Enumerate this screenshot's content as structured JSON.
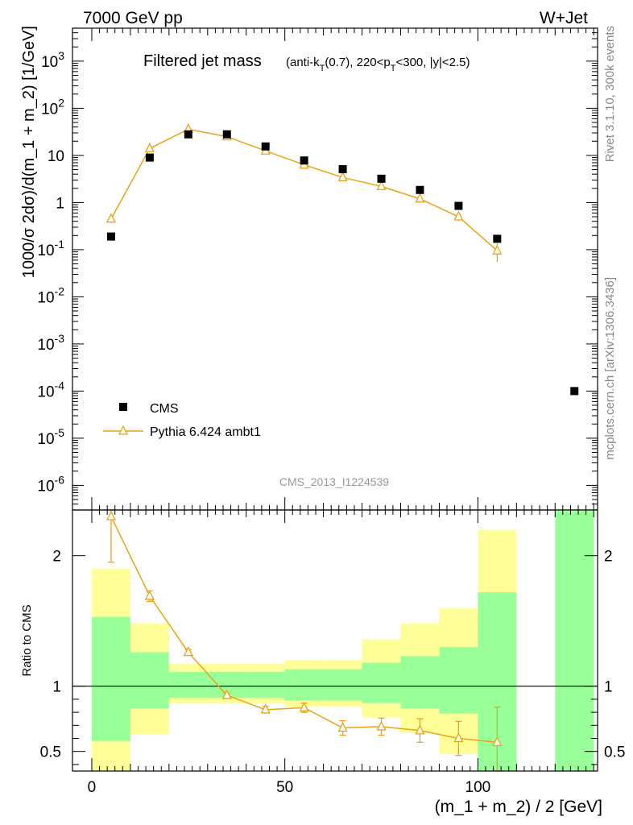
{
  "header": {
    "energy_label": "7000 GeV pp",
    "process_label": "W+Jet"
  },
  "side_labels": {
    "rivet": "Rivet 3.1.10,  300k events",
    "source": "mcplots.cern.ch [arXiv:1306.3436]"
  },
  "chart_data": [
    {
      "type": "scatter",
      "panel": "main",
      "title": "Filtered jet mass",
      "subtitle": "(anti-k_T(0.7), 220<p_T<300, |y|<2.5)",
      "watermark": "CMS_2013_I1224539",
      "ylabel": "1000/σ 2dσ)/d(m_1 + m_2) [1/GeV]",
      "yscale": "log",
      "ylim": [
        3e-07,
        5000
      ],
      "xlim": [
        -5,
        131
      ],
      "y_tick_labels": [
        "10^-6",
        "10^-5",
        "10^-4",
        "10^-3",
        "10^-2",
        "10^-1",
        "1",
        "10",
        "10^2",
        "10^3"
      ],
      "legend_position": "bottom-left",
      "series": [
        {
          "name": "CMS",
          "color": "#000000",
          "marker": "square",
          "x": [
            5,
            15,
            25,
            35,
            45,
            55,
            65,
            75,
            85,
            95,
            105,
            125
          ],
          "y": [
            0.19,
            9,
            28,
            28,
            15.5,
            7.8,
            5.1,
            3.2,
            1.85,
            0.85,
            0.17,
            0.0001
          ]
        },
        {
          "name": "Pythia 6.424 ambt1",
          "color": "#e8a317",
          "marker": "open-triangle",
          "x": [
            5,
            15,
            25,
            35,
            45,
            55,
            65,
            75,
            85,
            95,
            105
          ],
          "y": [
            0.45,
            14,
            36,
            25,
            12.5,
            6.3,
            3.4,
            2.2,
            1.2,
            0.5,
            0.095
          ],
          "y_err_low": [
            0.08,
            1.0,
            1.5,
            1.0,
            0.6,
            0.35,
            0.25,
            0.2,
            0.15,
            0.1,
            0.04
          ],
          "y_err_high": [
            0.08,
            1.0,
            1.5,
            1.0,
            0.6,
            0.35,
            0.25,
            0.2,
            0.15,
            0.1,
            0.04
          ]
        }
      ]
    },
    {
      "type": "line",
      "panel": "ratio",
      "ylabel": "Ratio to CMS",
      "xlabel": "(m_1 + m_2) / 2 [GeV]",
      "ylim": [
        0.35,
        2.35
      ],
      "xlim": [
        -5,
        131
      ],
      "x_tick_labels": [
        "0",
        "50",
        "100"
      ],
      "y_tick_labels": [
        "0.5",
        "1",
        "2"
      ],
      "reference_line": 1,
      "bands": {
        "color_stat": "#99ff99",
        "color_total": "#ffff99",
        "bins": [
          {
            "lo": 0,
            "hi": 10,
            "stat_lo": 0.58,
            "stat_hi": 1.53,
            "tot_lo": 0.35,
            "tot_hi": 1.9
          },
          {
            "lo": 10,
            "hi": 20,
            "stat_lo": 0.83,
            "stat_hi": 1.26,
            "tot_lo": 0.63,
            "tot_hi": 1.48
          },
          {
            "lo": 20,
            "hi": 30,
            "stat_lo": 0.91,
            "stat_hi": 1.11,
            "tot_lo": 0.87,
            "tot_hi": 1.17
          },
          {
            "lo": 30,
            "hi": 40,
            "stat_lo": 0.91,
            "stat_hi": 1.11,
            "tot_lo": 0.87,
            "tot_hi": 1.17
          },
          {
            "lo": 40,
            "hi": 50,
            "stat_lo": 0.91,
            "stat_hi": 1.11,
            "tot_lo": 0.87,
            "tot_hi": 1.17
          },
          {
            "lo": 50,
            "hi": 60,
            "stat_lo": 0.89,
            "stat_hi": 1.13,
            "tot_lo": 0.84,
            "tot_hi": 1.2
          },
          {
            "lo": 60,
            "hi": 70,
            "stat_lo": 0.89,
            "stat_hi": 1.13,
            "tot_lo": 0.84,
            "tot_hi": 1.2
          },
          {
            "lo": 70,
            "hi": 80,
            "stat_lo": 0.87,
            "stat_hi": 1.18,
            "tot_lo": 0.76,
            "tot_hi": 1.36
          },
          {
            "lo": 80,
            "hi": 90,
            "stat_lo": 0.83,
            "stat_hi": 1.23,
            "tot_lo": 0.64,
            "tot_hi": 1.48
          },
          {
            "lo": 90,
            "hi": 100,
            "stat_lo": 0.79,
            "stat_hi": 1.3,
            "tot_lo": 0.48,
            "tot_hi": 1.6
          },
          {
            "lo": 100,
            "hi": 110,
            "stat_lo": 0.35,
            "stat_hi": 1.72,
            "tot_lo": 0.35,
            "tot_hi": 2.2
          },
          {
            "lo": 120,
            "hi": 130,
            "stat_lo": 0.35,
            "stat_hi": 2.35,
            "tot_lo": 0.35,
            "tot_hi": 2.35
          }
        ]
      },
      "series": [
        {
          "name": "Pythia 6.424 ambt1",
          "color": "#e8a317",
          "x": [
            5,
            15,
            25,
            35,
            45,
            55,
            65,
            75,
            85,
            95,
            105
          ],
          "y": [
            2.3,
            1.69,
            1.26,
            0.93,
            0.82,
            0.835,
            0.68,
            0.69,
            0.66,
            0.6,
            0.57
          ],
          "y_err_low": [
            0.35,
            0.04,
            0.02,
            0.015,
            0.025,
            0.035,
            0.055,
            0.065,
            0.09,
            0.13,
            0.22
          ],
          "y_err_high": [
            0.35,
            0.04,
            0.02,
            0.015,
            0.025,
            0.035,
            0.055,
            0.065,
            0.09,
            0.13,
            0.27
          ]
        }
      ]
    }
  ]
}
